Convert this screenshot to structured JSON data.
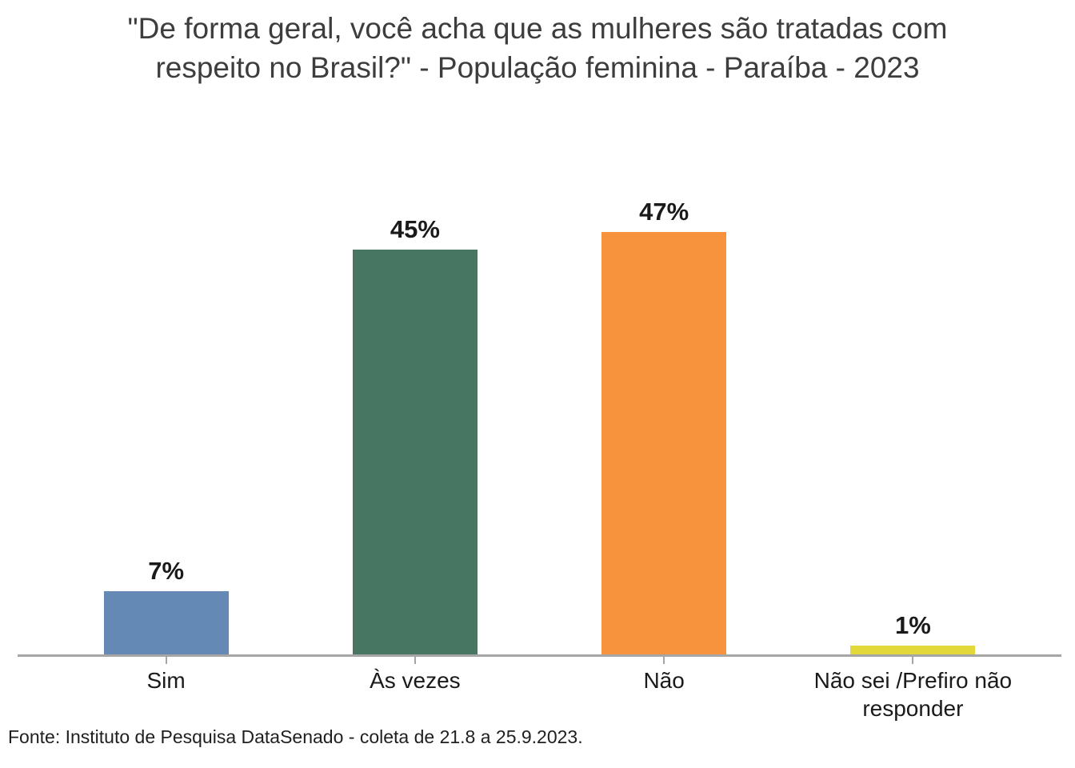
{
  "page": {
    "background": "#ffffff"
  },
  "title_lines": [
    "\"De forma geral, você acha que as mulheres são tratadas com",
    "respeito no Brasil?\" - População feminina - Paraíba - 2023"
  ],
  "footer": {
    "source": "Fonte: Instituto de Pesquisa DataSenado - coleta de 21.8 a 25.9.2023."
  },
  "chart_data": {
    "type": "bar",
    "title": "\"De forma geral, você acha que as mulheres são tratadas com respeito no Brasil?\" - População feminina - Paraíba - 2023",
    "categories": [
      "Sim",
      "Às vezes",
      "Não",
      "Não sei /Prefiro não responder"
    ],
    "values": [
      7,
      45,
      47,
      1
    ],
    "value_labels": [
      "7%",
      "45%",
      "47%",
      "1%"
    ],
    "bar_colors": [
      "#6389b4",
      "#477663",
      "#f8933d",
      "#e2d839"
    ],
    "xlabel": "",
    "ylabel": "",
    "ylim": [
      0,
      50
    ],
    "grid": false,
    "legend": "none",
    "axis_line_color": "#a6a6a6",
    "value_label_color": "#1a1a1a",
    "tick_label_color": "#1a1a1a",
    "title_color": "#3d3d3d",
    "source_note": "Fonte: Instituto de Pesquisa DataSenado - coleta de 21.8 a 25.9.2023."
  }
}
